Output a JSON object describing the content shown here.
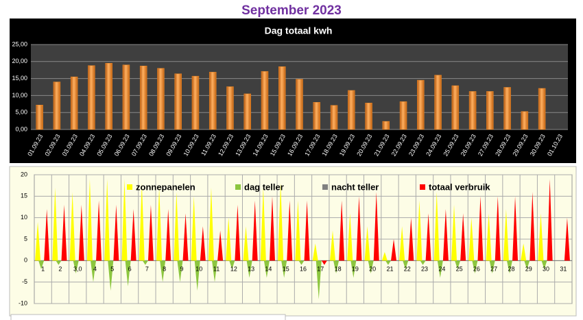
{
  "title": "September 2023",
  "chart_data": [
    {
      "type": "bar",
      "title": "Dag totaal kwh",
      "categories": [
        "01.09.23",
        "02.09.23",
        "03.09.23",
        "04.09.23",
        "05.09.23",
        "06.09.23",
        "07.09.23",
        "08.09.23",
        "09.09.23",
        "10.09.23",
        "11.09.23",
        "12.09.23",
        "13.09.23",
        "14.09.23",
        "15.09.23",
        "16.09.23",
        "17.09.23",
        "18.09.23",
        "19.09.23",
        "20.09.23",
        "21.09.23",
        "22.09.23",
        "23.09.23",
        "24.09.23",
        "25.09.23",
        "26.09.23",
        "27.09.23",
        "28.09.23",
        "29.09.23",
        "30.09.23",
        "01.10.23"
      ],
      "values": [
        7.2,
        14.0,
        15.5,
        18.8,
        19.5,
        19.0,
        18.7,
        18.0,
        16.4,
        15.7,
        16.9,
        12.6,
        10.5,
        17.1,
        18.5,
        14.8,
        8.0,
        7.1,
        11.5,
        7.8,
        2.4,
        8.2,
        14.5,
        16.0,
        12.9,
        11.2,
        11.2,
        12.4,
        5.3,
        12.1,
        null
      ],
      "color": "#f08a24",
      "ylim": [
        0,
        25
      ],
      "yticks": [
        {
          "value": 0,
          "label": "0,00"
        },
        {
          "value": 5,
          "label": "5,00"
        },
        {
          "value": 10,
          "label": "10,00"
        },
        {
          "value": 15,
          "label": "15,00"
        },
        {
          "value": 20,
          "label": "20,00"
        },
        {
          "value": 25,
          "label": "25,00"
        }
      ],
      "grid": true
    },
    {
      "type": "area",
      "categories": [
        "1",
        "2",
        "3,0",
        "4",
        "5",
        "6",
        "7",
        "8",
        "9",
        "10",
        "11",
        "12",
        "13",
        "14",
        "15",
        "16",
        "17",
        "18",
        "19",
        "20",
        "21",
        "22",
        "23",
        "24",
        "25",
        "26",
        "27",
        "28",
        "29",
        "30",
        "31"
      ],
      "series": [
        {
          "name": "zonnepanelen",
          "color": "#ffff00",
          "values": [
            9,
            17,
            16,
            19,
            19,
            19,
            18,
            17,
            16,
            15,
            17,
            10,
            8,
            17,
            18,
            14,
            4,
            7,
            11,
            8,
            2,
            8,
            14,
            16,
            13,
            10,
            11,
            12,
            4,
            11,
            null
          ]
        },
        {
          "name": "dag teller",
          "color": "#8cc63f",
          "values": [
            -2,
            -1,
            -3,
            -5,
            -7,
            -6,
            -1,
            -5,
            -5,
            -7,
            -5,
            -2,
            -4,
            -4,
            -4,
            -1,
            -9,
            -3,
            -4,
            -3,
            -1,
            -2,
            -1,
            -4,
            -2,
            -3,
            -3,
            -3,
            -2,
            -2,
            null
          ]
        },
        {
          "name": "nacht teller",
          "color": "#808080",
          "values": [
            0,
            0,
            0,
            0,
            0,
            0,
            0,
            0,
            0,
            0,
            0,
            0,
            0,
            0,
            0,
            0,
            0,
            0,
            0,
            0,
            0,
            0,
            0,
            0,
            0,
            0,
            0,
            0,
            0,
            0,
            null
          ]
        },
        {
          "name": "totaal verbruik",
          "color": "#ff0000",
          "values": [
            12,
            13,
            13,
            14,
            13,
            12,
            13,
            12,
            11,
            8,
            7,
            13,
            14,
            15,
            14,
            14,
            -1,
            14,
            15,
            16,
            5,
            10,
            11,
            12,
            11,
            15,
            15,
            15,
            16,
            19,
            10
          ]
        }
      ],
      "ylim": [
        -10,
        20
      ],
      "yticks": [
        -10,
        -5,
        0,
        5,
        10,
        15,
        20
      ],
      "grid": true
    }
  ]
}
